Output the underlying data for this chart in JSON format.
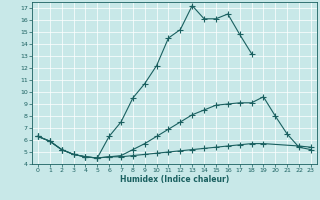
{
  "xlabel": "Humidex (Indice chaleur)",
  "bg_color": "#c8e8e8",
  "line_color": "#1a6060",
  "grid_color": "#ffffff",
  "xlim": [
    -0.5,
    23.5
  ],
  "ylim": [
    4,
    17.5
  ],
  "yticks": [
    4,
    5,
    6,
    7,
    8,
    9,
    10,
    11,
    12,
    13,
    14,
    15,
    16,
    17
  ],
  "xticks": [
    0,
    1,
    2,
    3,
    4,
    5,
    6,
    7,
    8,
    9,
    10,
    11,
    12,
    13,
    14,
    15,
    16,
    17,
    18,
    19,
    20,
    21,
    22,
    23
  ],
  "line1_x": [
    0,
    1,
    2,
    3,
    4,
    5,
    6,
    7,
    8,
    9,
    10,
    11,
    12,
    13,
    14,
    15,
    16,
    17,
    18
  ],
  "line1_y": [
    6.3,
    5.9,
    5.2,
    4.8,
    4.6,
    4.5,
    6.3,
    7.5,
    9.5,
    10.7,
    12.2,
    14.5,
    15.2,
    17.2,
    16.1,
    16.1,
    16.5,
    14.8,
    13.2
  ],
  "line2_x": [
    0,
    1,
    2,
    3,
    4,
    5,
    6,
    7,
    8,
    9,
    10,
    11,
    12,
    13,
    14,
    15,
    16,
    17,
    18,
    19,
    22,
    23
  ],
  "line2_y": [
    6.3,
    5.9,
    5.2,
    4.8,
    4.6,
    4.5,
    4.6,
    4.6,
    4.7,
    4.8,
    4.9,
    5.0,
    5.1,
    5.2,
    5.3,
    5.4,
    5.5,
    5.6,
    5.7,
    5.7,
    5.5,
    5.4
  ],
  "line3_x": [
    0,
    1,
    2,
    3,
    4,
    5,
    6,
    7,
    8,
    9,
    10,
    11,
    12,
    13,
    14,
    15,
    16,
    17,
    18,
    19,
    20,
    21,
    22,
    23
  ],
  "line3_y": [
    6.3,
    5.9,
    5.2,
    4.8,
    4.6,
    4.5,
    4.6,
    4.7,
    5.2,
    5.7,
    6.3,
    6.9,
    7.5,
    8.1,
    8.5,
    8.9,
    9.0,
    9.1,
    9.1,
    9.6,
    8.0,
    6.5,
    5.4,
    5.2
  ]
}
